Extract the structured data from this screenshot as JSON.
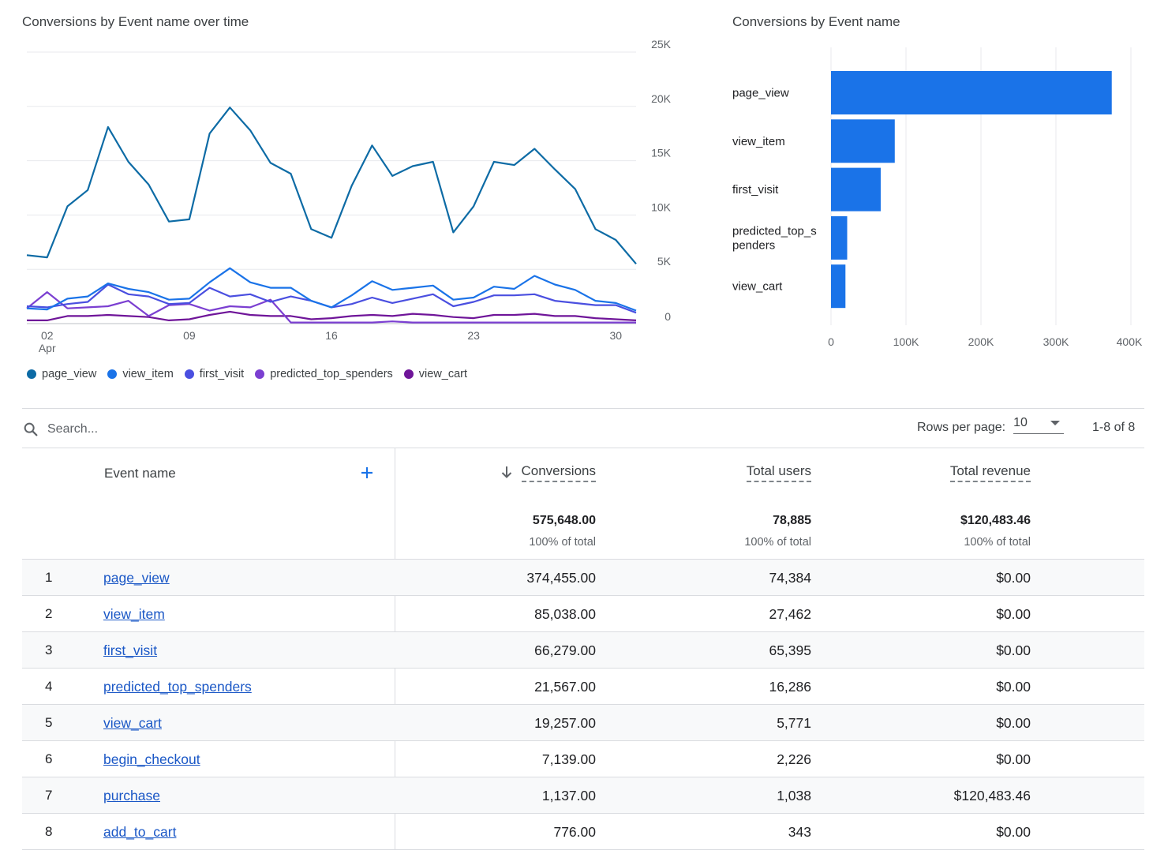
{
  "line_chart_title": "Conversions by Event name over time",
  "bar_chart_title": "Conversions by Event name",
  "colors": {
    "accent": "#1a73e8",
    "link": "#1a57c6",
    "grid": "#e8eaed"
  },
  "chart_data": [
    {
      "type": "line",
      "title": "Conversions by Event name over time",
      "x": [
        1,
        2,
        3,
        4,
        5,
        6,
        7,
        8,
        9,
        10,
        11,
        12,
        13,
        14,
        15,
        16,
        17,
        18,
        19,
        20,
        21,
        22,
        23,
        24,
        25,
        26,
        27,
        28,
        29,
        30,
        31
      ],
      "x_tick_labels": [
        {
          "day": 2,
          "label": "02",
          "sublabel": "Apr"
        },
        {
          "day": 9,
          "label": "09",
          "sublabel": ""
        },
        {
          "day": 16,
          "label": "16",
          "sublabel": ""
        },
        {
          "day": 23,
          "label": "23",
          "sublabel": ""
        },
        {
          "day": 30,
          "label": "30",
          "sublabel": ""
        }
      ],
      "y_ticks": [
        {
          "v": 0,
          "label": "0"
        },
        {
          "v": 5000,
          "label": "5K"
        },
        {
          "v": 10000,
          "label": "10K"
        },
        {
          "v": 15000,
          "label": "15K"
        },
        {
          "v": 20000,
          "label": "20K"
        },
        {
          "v": 25000,
          "label": "25K"
        }
      ],
      "ylim": [
        0,
        25000
      ],
      "xlim": [
        1,
        31
      ],
      "series": [
        {
          "name": "page_view",
          "color": "#0d6ba5",
          "values": [
            6300,
            6100,
            10800,
            12300,
            18100,
            14900,
            12800,
            9400,
            9600,
            17500,
            19900,
            17800,
            14800,
            13800,
            8700,
            7900,
            12700,
            16400,
            13600,
            14500,
            14900,
            8400,
            10800,
            14900,
            14600,
            16100,
            14200,
            12400,
            8700,
            7700,
            5500
          ]
        },
        {
          "name": "view_item",
          "color": "#1a73e8",
          "values": [
            1400,
            1300,
            2300,
            2500,
            3700,
            3200,
            2900,
            2200,
            2300,
            3800,
            5100,
            3800,
            3300,
            3300,
            2100,
            1500,
            2600,
            3900,
            3100,
            3300,
            3500,
            2200,
            2400,
            3400,
            3200,
            4400,
            3600,
            3100,
            2100,
            1900,
            1200
          ]
        },
        {
          "name": "first_visit",
          "color": "#4a4fe0",
          "values": [
            1600,
            1500,
            1800,
            2000,
            3600,
            2700,
            2500,
            1800,
            1900,
            3300,
            2500,
            2700,
            2000,
            2500,
            2100,
            1500,
            1800,
            2400,
            1900,
            2300,
            2700,
            1600,
            2000,
            2600,
            2600,
            2700,
            2100,
            1900,
            1700,
            1700,
            1000
          ]
        },
        {
          "name": "predicted_top_spenders",
          "color": "#7b3fd1",
          "values": [
            1400,
            2900,
            1400,
            1500,
            1600,
            2100,
            700,
            1700,
            1800,
            1200,
            1600,
            1500,
            2200,
            100,
            100,
            100,
            100,
            100,
            200,
            100,
            100,
            100,
            100,
            100,
            100,
            100,
            100,
            100,
            100,
            100,
            100
          ]
        },
        {
          "name": "view_cart",
          "color": "#6f1599",
          "values": [
            300,
            300,
            700,
            700,
            800,
            700,
            600,
            300,
            400,
            800,
            1100,
            800,
            700,
            700,
            400,
            500,
            700,
            800,
            700,
            900,
            800,
            600,
            500,
            800,
            800,
            900,
            700,
            700,
            500,
            400,
            300
          ]
        }
      ]
    },
    {
      "type": "bar",
      "orientation": "horizontal",
      "title": "Conversions by Event name",
      "categories": [
        "page_view",
        "view_item",
        "first_visit",
        "predicted_top_spenders",
        "view_cart"
      ],
      "category_display": [
        [
          "page_view"
        ],
        [
          "view_item"
        ],
        [
          "first_visit"
        ],
        [
          "predicted_top_s",
          "penders"
        ],
        [
          "view_cart"
        ]
      ],
      "values": [
        374455,
        85038,
        66279,
        21567,
        19257
      ],
      "color": "#1a73e8",
      "x_ticks": [
        {
          "v": 0,
          "label": "0"
        },
        {
          "v": 100000,
          "label": "100K"
        },
        {
          "v": 200000,
          "label": "200K"
        },
        {
          "v": 300000,
          "label": "300K"
        },
        {
          "v": 400000,
          "label": "400K"
        }
      ],
      "xlim": [
        0,
        400000
      ]
    }
  ],
  "search": {
    "placeholder": "Search..."
  },
  "pagination": {
    "rows_label": "Rows per page:",
    "rows_value": "10",
    "range": "1-8 of 8"
  },
  "table": {
    "columns": {
      "event_name": "Event name",
      "conversions": "Conversions",
      "users": "Total users",
      "revenue": "Total revenue"
    },
    "totals": {
      "conversions": "575,648.00",
      "users": "78,885",
      "revenue": "$120,483.46",
      "pct": "100% of total"
    },
    "rows": [
      {
        "idx": "1",
        "name": "page_view",
        "conversions": "374,455.00",
        "users": "74,384",
        "revenue": "$0.00"
      },
      {
        "idx": "2",
        "name": "view_item",
        "conversions": "85,038.00",
        "users": "27,462",
        "revenue": "$0.00"
      },
      {
        "idx": "3",
        "name": "first_visit",
        "conversions": "66,279.00",
        "users": "65,395",
        "revenue": "$0.00"
      },
      {
        "idx": "4",
        "name": "predicted_top_spenders",
        "conversions": "21,567.00",
        "users": "16,286",
        "revenue": "$0.00"
      },
      {
        "idx": "5",
        "name": "view_cart",
        "conversions": "19,257.00",
        "users": "5,771",
        "revenue": "$0.00"
      },
      {
        "idx": "6",
        "name": "begin_checkout",
        "conversions": "7,139.00",
        "users": "2,226",
        "revenue": "$0.00"
      },
      {
        "idx": "7",
        "name": "purchase",
        "conversions": "1,137.00",
        "users": "1,038",
        "revenue": "$120,483.46"
      },
      {
        "idx": "8",
        "name": "add_to_cart",
        "conversions": "776.00",
        "users": "343",
        "revenue": "$0.00"
      }
    ]
  }
}
